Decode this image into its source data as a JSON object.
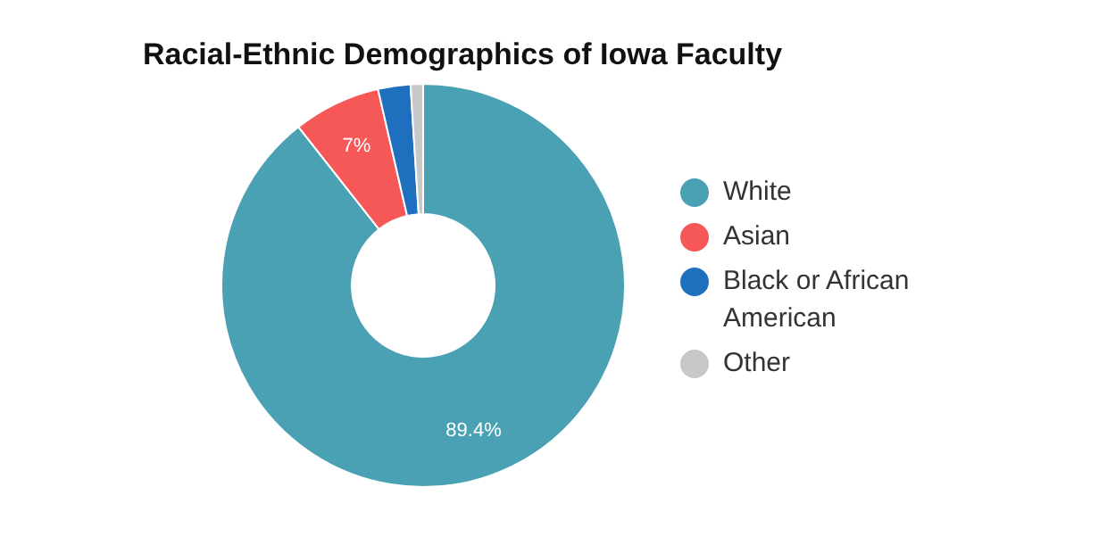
{
  "chart_data": {
    "type": "donut",
    "title": "Racial-Ethnic Demographics of Iowa Faculty",
    "categories": [
      "White",
      "Asian",
      "Black or African American",
      "Other"
    ],
    "values": [
      89.4,
      7,
      2.6,
      1
    ],
    "value_labels": [
      "89.4%",
      "7%",
      null,
      null
    ],
    "colors": [
      "#4aa1b4",
      "#f65757",
      "#1f6fbf",
      "#c8c8c8"
    ],
    "legend": "right"
  }
}
